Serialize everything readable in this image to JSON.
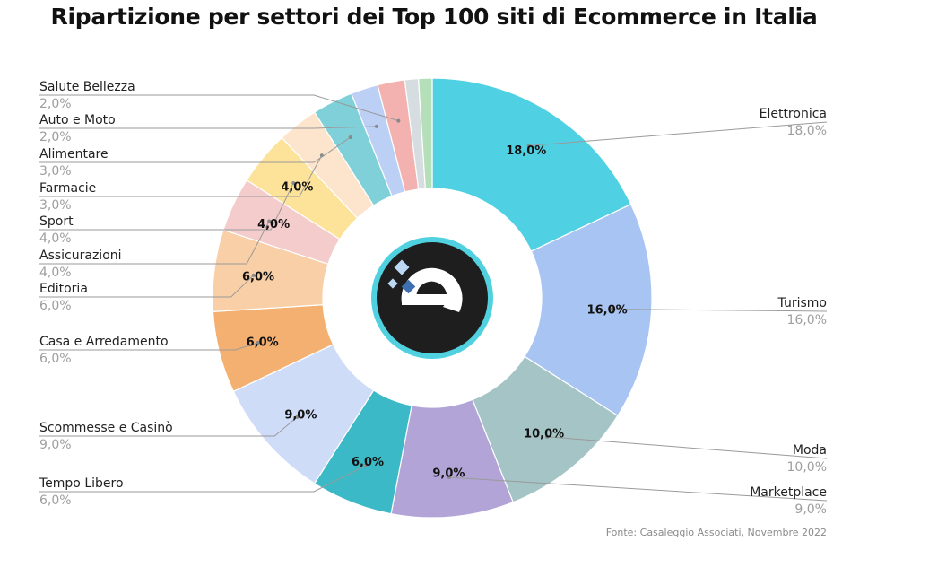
{
  "colors": {
    "background": "#ffffff",
    "logo_ring": "#4fd1e0",
    "logo_bg": "#1e1e1e",
    "logo_fg": "#ffffff",
    "logo_accent_light": "#bcd8f2",
    "logo_accent_dark": "#3e6fb0"
  },
  "logo": {
    "icon": "ecommerce-e-logo"
  },
  "source": "Fonte: Casaleggio Associati, Novembre 2022",
  "chart_data": {
    "type": "pie",
    "title": "Ripartizione per settori dei Top 100 siti di Ecommerce in Italia",
    "donut": true,
    "unit": "%",
    "slices": [
      {
        "label": "Elettronica",
        "value": 18.0,
        "value_text": "18,0%",
        "color": "#4fd1e3",
        "side": "right",
        "inside_label": true
      },
      {
        "label": "Turismo",
        "value": 16.0,
        "value_text": "16,0%",
        "color": "#a8c4f2",
        "side": "right",
        "inside_label": true
      },
      {
        "label": "Moda",
        "value": 10.0,
        "value_text": "10,0%",
        "color": "#a4c4c6",
        "side": "right",
        "inside_label": true
      },
      {
        "label": "Marketplace",
        "value": 9.0,
        "value_text": "9,0%",
        "color": "#b2a4d6",
        "side": "right",
        "inside_label": true
      },
      {
        "label": "Tempo Libero",
        "value": 6.0,
        "value_text": "6,0%",
        "color": "#3bb9c7",
        "side": "left",
        "inside_label": true
      },
      {
        "label": "Scommesse e Casinò",
        "value": 9.0,
        "value_text": "9,0%",
        "color": "#cfdcf7",
        "side": "left",
        "inside_label": true
      },
      {
        "label": "Casa e Arredamento",
        "value": 6.0,
        "value_text": "6,0%",
        "color": "#f4b070",
        "side": "left",
        "inside_label": true
      },
      {
        "label": "Editoria",
        "value": 6.0,
        "value_text": "6,0%",
        "color": "#f8cfa6",
        "side": "left",
        "inside_label": true
      },
      {
        "label": "Assicurazioni",
        "value": 4.0,
        "value_text": "4,0%",
        "color": "#f4cccc",
        "side": "left",
        "inside_label": true
      },
      {
        "label": "Sport",
        "value": 4.0,
        "value_text": "4,0%",
        "color": "#fde39a",
        "side": "left",
        "inside_label": true
      },
      {
        "label": "Farmacie",
        "value": 3.0,
        "value_text": "3,0%",
        "color": "#fde4cc",
        "side": "left",
        "inside_label": false
      },
      {
        "label": "Alimentare",
        "value": 3.0,
        "value_text": "3,0%",
        "color": "#7fd0d8",
        "side": "left",
        "inside_label": false
      },
      {
        "label": "Auto e Moto",
        "value": 2.0,
        "value_text": "2,0%",
        "color": "#bcd0f6",
        "side": "left",
        "inside_label": false
      },
      {
        "label": "Salute Bellezza",
        "value": 2.0,
        "value_text": "2,0%",
        "color": "#f3b2b0",
        "side": "left",
        "inside_label": false
      },
      {
        "label": "",
        "value": 1.0,
        "value_text": "",
        "color": "#d6dde1",
        "side": "none",
        "inside_label": false
      },
      {
        "label": "",
        "value": 1.0,
        "value_text": "",
        "color": "#b5dfb8",
        "side": "none",
        "inside_label": false
      }
    ]
  }
}
